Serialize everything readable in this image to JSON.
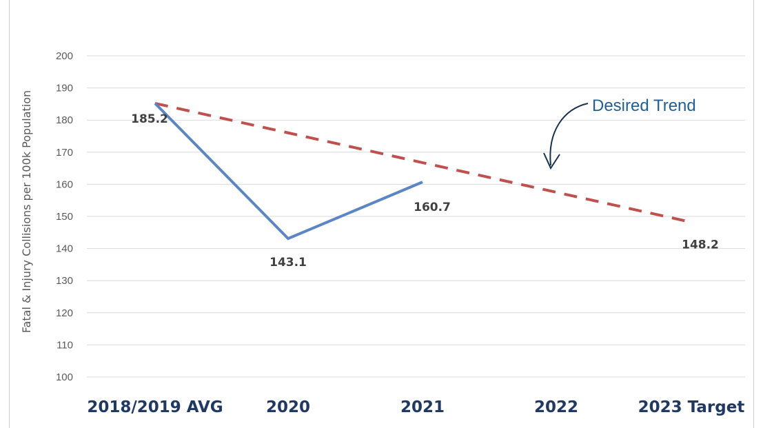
{
  "chart_data": {
    "type": "line",
    "categories": [
      "2018/2019 AVG",
      "2020",
      "2021",
      "2022",
      "2023 Target"
    ],
    "ylabel": "Fatal & Injury Collisions per 100k Population",
    "ylim": [
      100,
      200
    ],
    "yticks": [
      100,
      110,
      120,
      130,
      140,
      150,
      160,
      170,
      180,
      190,
      200
    ],
    "grid": true,
    "series": [
      {
        "key": "actual",
        "style": "solid",
        "color": "#5b86c5",
        "x": [
          "2018/2019 AVG",
          "2020",
          "2021"
        ],
        "values": [
          185.2,
          143.1,
          160.7
        ]
      },
      {
        "key": "target",
        "style": "dashed",
        "color": "#c0504d",
        "x": [
          "2018/2019 AVG",
          "2023 Target"
        ],
        "values": [
          185.2,
          148.2
        ]
      }
    ],
    "data_labels": [
      {
        "text": "185.2",
        "category": "2018/2019 AVG",
        "value": 185.2
      },
      {
        "text": "143.1",
        "category": "2020",
        "value": 143.1
      },
      {
        "text": "160.7",
        "category": "2021",
        "value": 160.7
      },
      {
        "text": "148.2",
        "category": "2023 Target",
        "value": 148.2
      }
    ],
    "annotation": {
      "text": "Desired Trend",
      "arrow_color": "#17324d"
    }
  }
}
